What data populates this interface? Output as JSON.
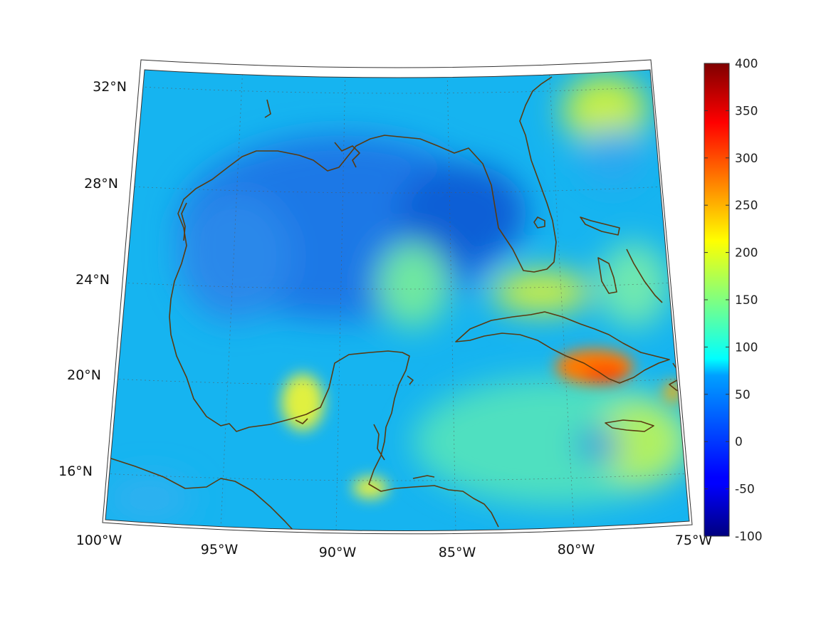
{
  "map": {
    "projection": "conic",
    "lon_range": [
      -100,
      -75
    ],
    "lat_range": [
      14,
      33
    ],
    "lon_labels": [
      "100°W",
      "95°W",
      "90°W",
      "85°W",
      "80°W",
      "75°W"
    ],
    "lat_labels": [
      "16°N",
      "20°N",
      "24°N",
      "28°N",
      "32°N"
    ],
    "coastline_color": "#5a3a10",
    "grid": "dotted"
  },
  "colorbar": {
    "colormap": "jet",
    "min": -100,
    "max": 400,
    "tick_labels": [
      "400",
      "350",
      "300",
      "250",
      "200",
      "150",
      "100",
      "50",
      "0",
      "-50",
      "-100"
    ]
  },
  "field": {
    "ocean_background_value": 60,
    "features": [
      {
        "region": "Gulf of Mexico",
        "level": "low",
        "value": 30
      },
      {
        "region": "Eastern Gulf near Florida",
        "level": "lowest",
        "value": 10
      },
      {
        "region": "Eastern Cuba",
        "level": "highest",
        "value": 300
      },
      {
        "region": "Atlantic off Carolinas",
        "level": "high",
        "value": 190
      },
      {
        "region": "Florida Straits",
        "level": "high",
        "value": 200
      },
      {
        "region": "Bay of Campeche coast",
        "level": "high",
        "value": 190
      },
      {
        "region": "Western Caribbean",
        "level": "moderate",
        "value": 140
      }
    ]
  }
}
